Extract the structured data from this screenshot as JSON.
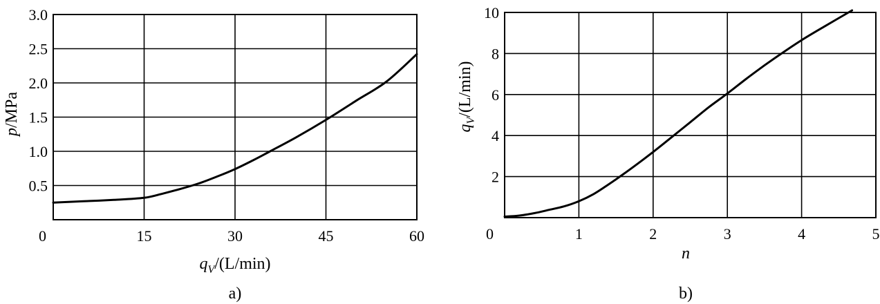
{
  "chart_data": [
    {
      "type": "line",
      "panel_label": "a)",
      "xlabel_var": "q",
      "xlabel_sub": "V",
      "xlabel_unit": "/(L/min)",
      "ylabel_var": "p",
      "ylabel_unit": "/MPa",
      "xlim": [
        0,
        60
      ],
      "ylim": [
        0,
        3.0
      ],
      "x_ticks": [
        "0",
        "15",
        "30",
        "45",
        "60"
      ],
      "x_tick_values": [
        0,
        15,
        30,
        45,
        60
      ],
      "y_ticks": [
        "0.5",
        "1.0",
        "1.5",
        "2.0",
        "2.5",
        "3.0"
      ],
      "y_tick_values": [
        0.5,
        1.0,
        1.5,
        2.0,
        2.5,
        3.0
      ],
      "grid": true,
      "series": [
        {
          "x": [
            0,
            5,
            10,
            15,
            18,
            21,
            24,
            27,
            30,
            33,
            36,
            40,
            45,
            50,
            55,
            60
          ],
          "y": [
            0.25,
            0.27,
            0.29,
            0.32,
            0.38,
            0.45,
            0.53,
            0.63,
            0.74,
            0.87,
            1.01,
            1.2,
            1.46,
            1.74,
            2.02,
            2.42
          ]
        }
      ]
    },
    {
      "type": "line",
      "panel_label": "b)",
      "xlabel_var": "n",
      "ylabel_var": "q",
      "ylabel_sub": "V",
      "ylabel_unit": "/(L/min)",
      "xlim": [
        0,
        5
      ],
      "ylim": [
        0,
        10
      ],
      "x_ticks": [
        "0",
        "1",
        "2",
        "3",
        "4",
        "5"
      ],
      "x_tick_values": [
        0,
        1,
        2,
        3,
        4,
        5
      ],
      "y_ticks": [
        "2",
        "4",
        "6",
        "8",
        "10"
      ],
      "y_tick_values": [
        2,
        4,
        6,
        8,
        10
      ],
      "grid": true,
      "series": [
        {
          "x": [
            0,
            0.2,
            0.4,
            0.6,
            0.8,
            1.0,
            1.2,
            1.4,
            1.6,
            1.8,
            2.0,
            2.25,
            2.5,
            2.75,
            3.0,
            3.25,
            3.5,
            3.75,
            4.0,
            4.3,
            4.68
          ],
          "y": [
            0.05,
            0.1,
            0.22,
            0.38,
            0.55,
            0.8,
            1.15,
            1.62,
            2.12,
            2.65,
            3.2,
            3.92,
            4.65,
            5.38,
            6.05,
            6.75,
            7.42,
            8.05,
            8.65,
            9.3,
            10.1
          ]
        }
      ]
    }
  ]
}
